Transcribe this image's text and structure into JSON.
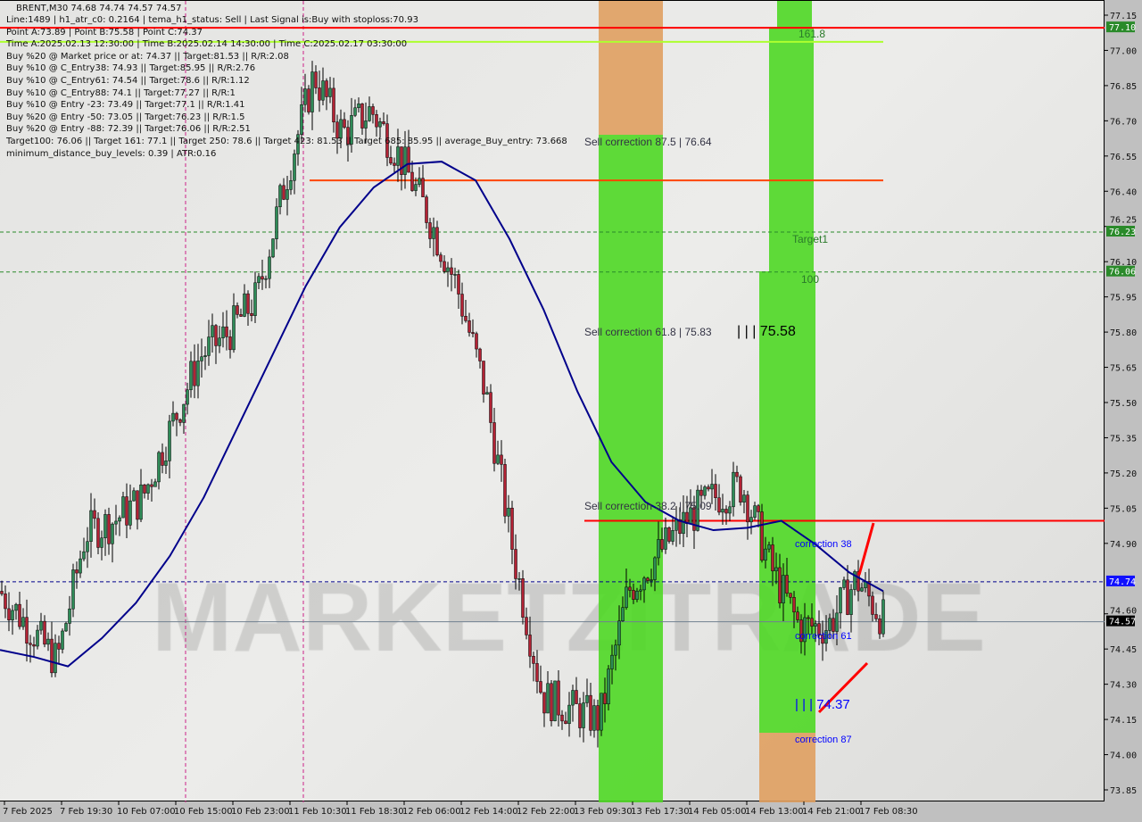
{
  "header": {
    "title": "BRENT,M30  74.68 74.74 74.57 74.57",
    "lines": [
      "Line:1489 | h1_atr_c0: 0.2164 | tema_h1_status: Sell | Last Signal is:Buy with stoploss:70.93",
      "Point A:73.89 | Point B:75.58 | Point C:74.37",
      "Time A:2025.02.13 12:30:00 | Time B:2025.02.14 14:30:00 | Time C:2025.02.17 03:30:00",
      "Buy %20 @ Market price or at: 74.37 || Target:81.53 || R/R:2.08",
      "Buy %10 @ C_Entry38: 74.93 || Target:85.95 || R/R:2.76",
      "Buy %10 @ C_Entry61: 74.54 || Target:78.6 || R/R:1.12",
      "Buy %10 @ C_Entry88: 74.1 || Target:77.27 || R/R:1",
      "Buy %10 @ Entry -23: 73.49 || Target:77.1 || R/R:1.41",
      "Buy %20 @ Entry -50: 73.05 || Target:76.23 || R/R:1.5",
      "Buy %20 @ Entry -88: 72.39 || Target:76.06 || R/R:2.51",
      "Target100: 76.06 || Target 161: 77.1 || Target 250: 78.6 || Target 423: 81.53 || Target 685: 85.95 || average_Buy_entry: 73.668",
      "minimum_distance_buy_levels: 0.39 | ATR:0.16"
    ]
  },
  "chart_data": {
    "type": "candlestick",
    "symbol": "BRENT",
    "timeframe": "M30",
    "ylim": [
      73.85,
      77.15
    ],
    "y_ticks": [
      "77.15",
      "77.00",
      "76.85",
      "76.70",
      "76.55",
      "76.40",
      "76.25",
      "76.10",
      "75.95",
      "75.80",
      "75.65",
      "75.50",
      "75.35",
      "75.20",
      "75.05",
      "74.90",
      "74.74",
      "74.60",
      "74.57",
      "74.45",
      "74.30",
      "74.15",
      "74.00",
      "73.85"
    ],
    "x_ticks": [
      "7 Feb 2025",
      "7 Feb 19:30",
      "10 Feb 07:00",
      "10 Feb 15:00",
      "10 Feb 23:00",
      "11 Feb 10:30",
      "11 Feb 18:30",
      "12 Feb 06:00",
      "12 Feb 14:00",
      "12 Feb 22:00",
      "13 Feb 09:30",
      "13 Feb 17:30",
      "14 Feb 05:00",
      "14 Feb 13:00",
      "14 Feb 21:00",
      "17 Feb 08:30"
    ],
    "close_approx": [
      74.7,
      74.55,
      74.4,
      74.95,
      75.0,
      75.1,
      75.4,
      75.7,
      75.8,
      75.95,
      76.45,
      76.9,
      76.65,
      76.75,
      76.55,
      76.3,
      76.0,
      75.55,
      74.85,
      74.25,
      74.2,
      74.15,
      74.7,
      74.85,
      75.0,
      75.1,
      75.15,
      74.8,
      74.55,
      74.55,
      74.75,
      74.57
    ],
    "moving_average_approx": [
      74.45,
      74.42,
      74.38,
      74.5,
      74.65,
      74.85,
      75.1,
      75.4,
      75.7,
      76.0,
      76.25,
      76.42,
      76.52,
      76.53,
      76.45,
      76.2,
      75.9,
      75.55,
      75.25,
      75.08,
      75.0,
      74.96,
      74.97,
      75.0,
      74.9,
      74.78,
      74.7
    ],
    "price_labels": [
      {
        "value": "77.10",
        "color": "#2a8a2a"
      },
      {
        "value": "76.23",
        "color": "#2a8a2a"
      },
      {
        "value": "76.06",
        "color": "#2a8a2a"
      },
      {
        "value": "74.74",
        "color": "#1010ff"
      },
      {
        "value": "74.57",
        "color": "#000000"
      }
    ],
    "levels": [
      {
        "price": 77.1,
        "color": "#ff0000",
        "style": "solid"
      },
      {
        "price": 77.04,
        "color": "#adff2f",
        "style": "solid"
      },
      {
        "price": 76.45,
        "color": "#ff4500",
        "style": "solid"
      },
      {
        "price": 75.0,
        "color": "#ff0000",
        "style": "solid"
      },
      {
        "price": 76.23,
        "color": "#2a8a2a",
        "style": "dashed"
      },
      {
        "price": 76.06,
        "color": "#2a8a2a",
        "style": "dashed"
      },
      {
        "price": 74.74,
        "color": "#00008b",
        "style": "dashed"
      },
      {
        "price": 74.57,
        "color": "#708090",
        "style": "solid"
      }
    ],
    "annotations": {
      "sell_87": "Sell correction 87.5 | 76.64",
      "sell_61": "Sell correction 61.8 | 75.83",
      "sell_38": "Sell correction 38.2 | 75.09",
      "fib_161": "161.8",
      "target1": "Target1",
      "fib_100": "100",
      "point_b": "| | | 75.58",
      "corr_38": "correction 38",
      "corr_61": "correction 61",
      "point_c": "| | | 74.37",
      "corr_87": "correction 87"
    },
    "watermark": "MARKETZITRADE",
    "colors": {
      "bull": "#2e8b57",
      "bear": "#b22234",
      "zone_green": "#4fd825",
      "zone_orange": "#e0a060",
      "ma": "#00008b"
    }
  }
}
